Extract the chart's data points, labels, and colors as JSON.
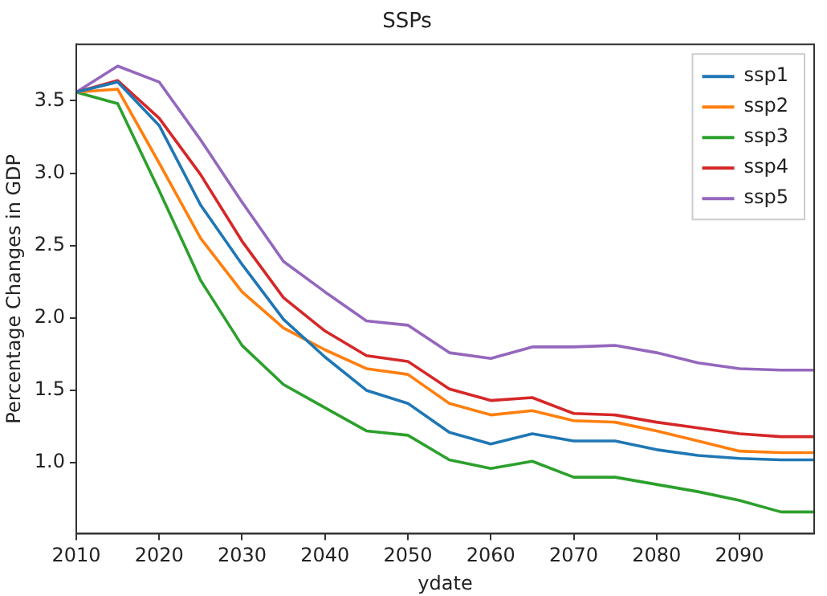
{
  "chart_data": {
    "type": "line",
    "title": "SSPs",
    "xlabel": "ydate",
    "ylabel": "Percentage Changes in GDP",
    "x": [
      2010,
      2015,
      2020,
      2025,
      2030,
      2035,
      2040,
      2045,
      2050,
      2055,
      2060,
      2065,
      2070,
      2075,
      2080,
      2085,
      2090,
      2095,
      2099
    ],
    "series": [
      {
        "name": "ssp1",
        "color": "#1f77b4",
        "values": [
          3.56,
          3.63,
          3.33,
          2.78,
          2.37,
          1.99,
          1.73,
          1.5,
          1.41,
          1.21,
          1.13,
          1.2,
          1.15,
          1.15,
          1.09,
          1.05,
          1.03,
          1.02,
          1.02
        ]
      },
      {
        "name": "ssp2",
        "color": "#ff7f0e",
        "values": [
          3.56,
          3.58,
          3.07,
          2.55,
          2.18,
          1.93,
          1.78,
          1.65,
          1.61,
          1.41,
          1.33,
          1.36,
          1.29,
          1.28,
          1.22,
          1.15,
          1.08,
          1.07,
          1.07
        ]
      },
      {
        "name": "ssp3",
        "color": "#2ca02c",
        "values": [
          3.56,
          3.48,
          2.88,
          2.26,
          1.81,
          1.54,
          1.38,
          1.22,
          1.19,
          1.02,
          0.96,
          1.01,
          0.9,
          0.9,
          0.85,
          0.8,
          0.74,
          0.66,
          0.66
        ]
      },
      {
        "name": "ssp4",
        "color": "#d62728",
        "values": [
          3.56,
          3.64,
          3.38,
          2.99,
          2.53,
          2.14,
          1.91,
          1.74,
          1.7,
          1.51,
          1.43,
          1.45,
          1.34,
          1.33,
          1.28,
          1.24,
          1.2,
          1.18,
          1.18
        ]
      },
      {
        "name": "ssp5",
        "color": "#9467bd",
        "values": [
          3.56,
          3.74,
          3.63,
          3.23,
          2.8,
          2.39,
          2.18,
          1.98,
          1.95,
          1.76,
          1.72,
          1.8,
          1.8,
          1.81,
          1.76,
          1.69,
          1.65,
          1.64,
          1.64
        ]
      }
    ],
    "xlim": [
      2010,
      2099
    ],
    "xticks": [
      2010,
      2020,
      2030,
      2040,
      2050,
      2060,
      2070,
      2080,
      2090
    ],
    "ylim": [
      0.51,
      3.89
    ],
    "yticks": [
      {
        "value": 1,
        "label": "1.0"
      },
      {
        "value": 1.5,
        "label": "1.5"
      },
      {
        "value": 2,
        "label": "2.0"
      },
      {
        "value": 2.5,
        "label": "2.5"
      },
      {
        "value": 3,
        "label": "3.0"
      },
      {
        "value": 3.5,
        "label": "3.5"
      }
    ],
    "grid": false,
    "legend": "top right",
    "marker": "none",
    "line_style": "solid"
  }
}
